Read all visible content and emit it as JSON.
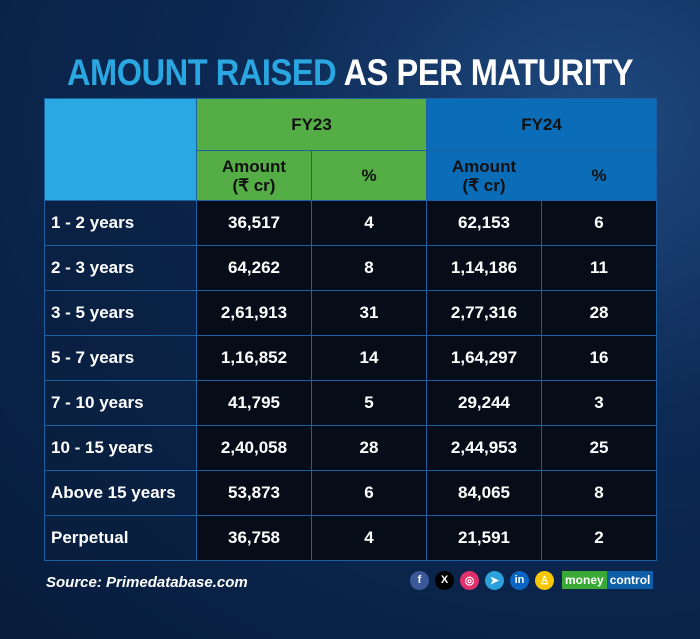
{
  "title": {
    "highlight": "AMOUNT RAISED",
    "rest": "AS PER MATURITY"
  },
  "chart_data": {
    "type": "table",
    "title": "AMOUNT RAISED AS PER MATURITY",
    "groups": [
      "FY23",
      "FY24"
    ],
    "subheaders": [
      "Amount (₹ cr)",
      "%",
      "Amount (₹ cr)",
      "%"
    ],
    "subheader_amount_line1": "Amount",
    "subheader_amount_line2": "(₹ cr)",
    "subheader_pct": "%",
    "rows": [
      {
        "label": "1 - 2 years",
        "fy23_amount": "36,517",
        "fy23_pct": "4",
        "fy24_amount": "62,153",
        "fy24_pct": "6"
      },
      {
        "label": "2 - 3 years",
        "fy23_amount": "64,262",
        "fy23_pct": "8",
        "fy24_amount": "1,14,186",
        "fy24_pct": "11"
      },
      {
        "label": "3 - 5 years",
        "fy23_amount": "2,61,913",
        "fy23_pct": "31",
        "fy24_amount": "2,77,316",
        "fy24_pct": "28"
      },
      {
        "label": "5 - 7 years",
        "fy23_amount": "1,16,852",
        "fy23_pct": "14",
        "fy24_amount": "1,64,297",
        "fy24_pct": "16"
      },
      {
        "label": "7 - 10 years",
        "fy23_amount": "41,795",
        "fy23_pct": "5",
        "fy24_amount": "29,244",
        "fy24_pct": "3"
      },
      {
        "label": "10 - 15 years",
        "fy23_amount": "2,40,058",
        "fy23_pct": "28",
        "fy24_amount": "2,44,953",
        "fy24_pct": "25"
      },
      {
        "label": "Above 15 years",
        "fy23_amount": "53,873",
        "fy23_pct": "6",
        "fy24_amount": "84,065",
        "fy24_pct": "8"
      },
      {
        "label": "Perpetual",
        "fy23_amount": "36,758",
        "fy23_pct": "4",
        "fy24_amount": "21,591",
        "fy24_pct": "2"
      }
    ]
  },
  "footer": {
    "source": "Source: Primedatabase.com",
    "brand_a": "money",
    "brand_b": "control",
    "social": [
      {
        "name": "facebook",
        "glyph": "f",
        "color": "#3b5998"
      },
      {
        "name": "x",
        "glyph": "X",
        "color": "#000000"
      },
      {
        "name": "instagram",
        "glyph": "◎",
        "color": "#e1306c"
      },
      {
        "name": "telegram",
        "glyph": "➤",
        "color": "#2aa1da"
      },
      {
        "name": "linkedin",
        "glyph": "in",
        "color": "#0a66c2"
      },
      {
        "name": "snapchat",
        "glyph": "♙",
        "color": "#f7c600"
      }
    ]
  },
  "colors": {
    "fy23": "#55ad45",
    "fy24": "#0b6cb8",
    "label_header": "#29a8e2",
    "accent": "#2aa7e0"
  }
}
